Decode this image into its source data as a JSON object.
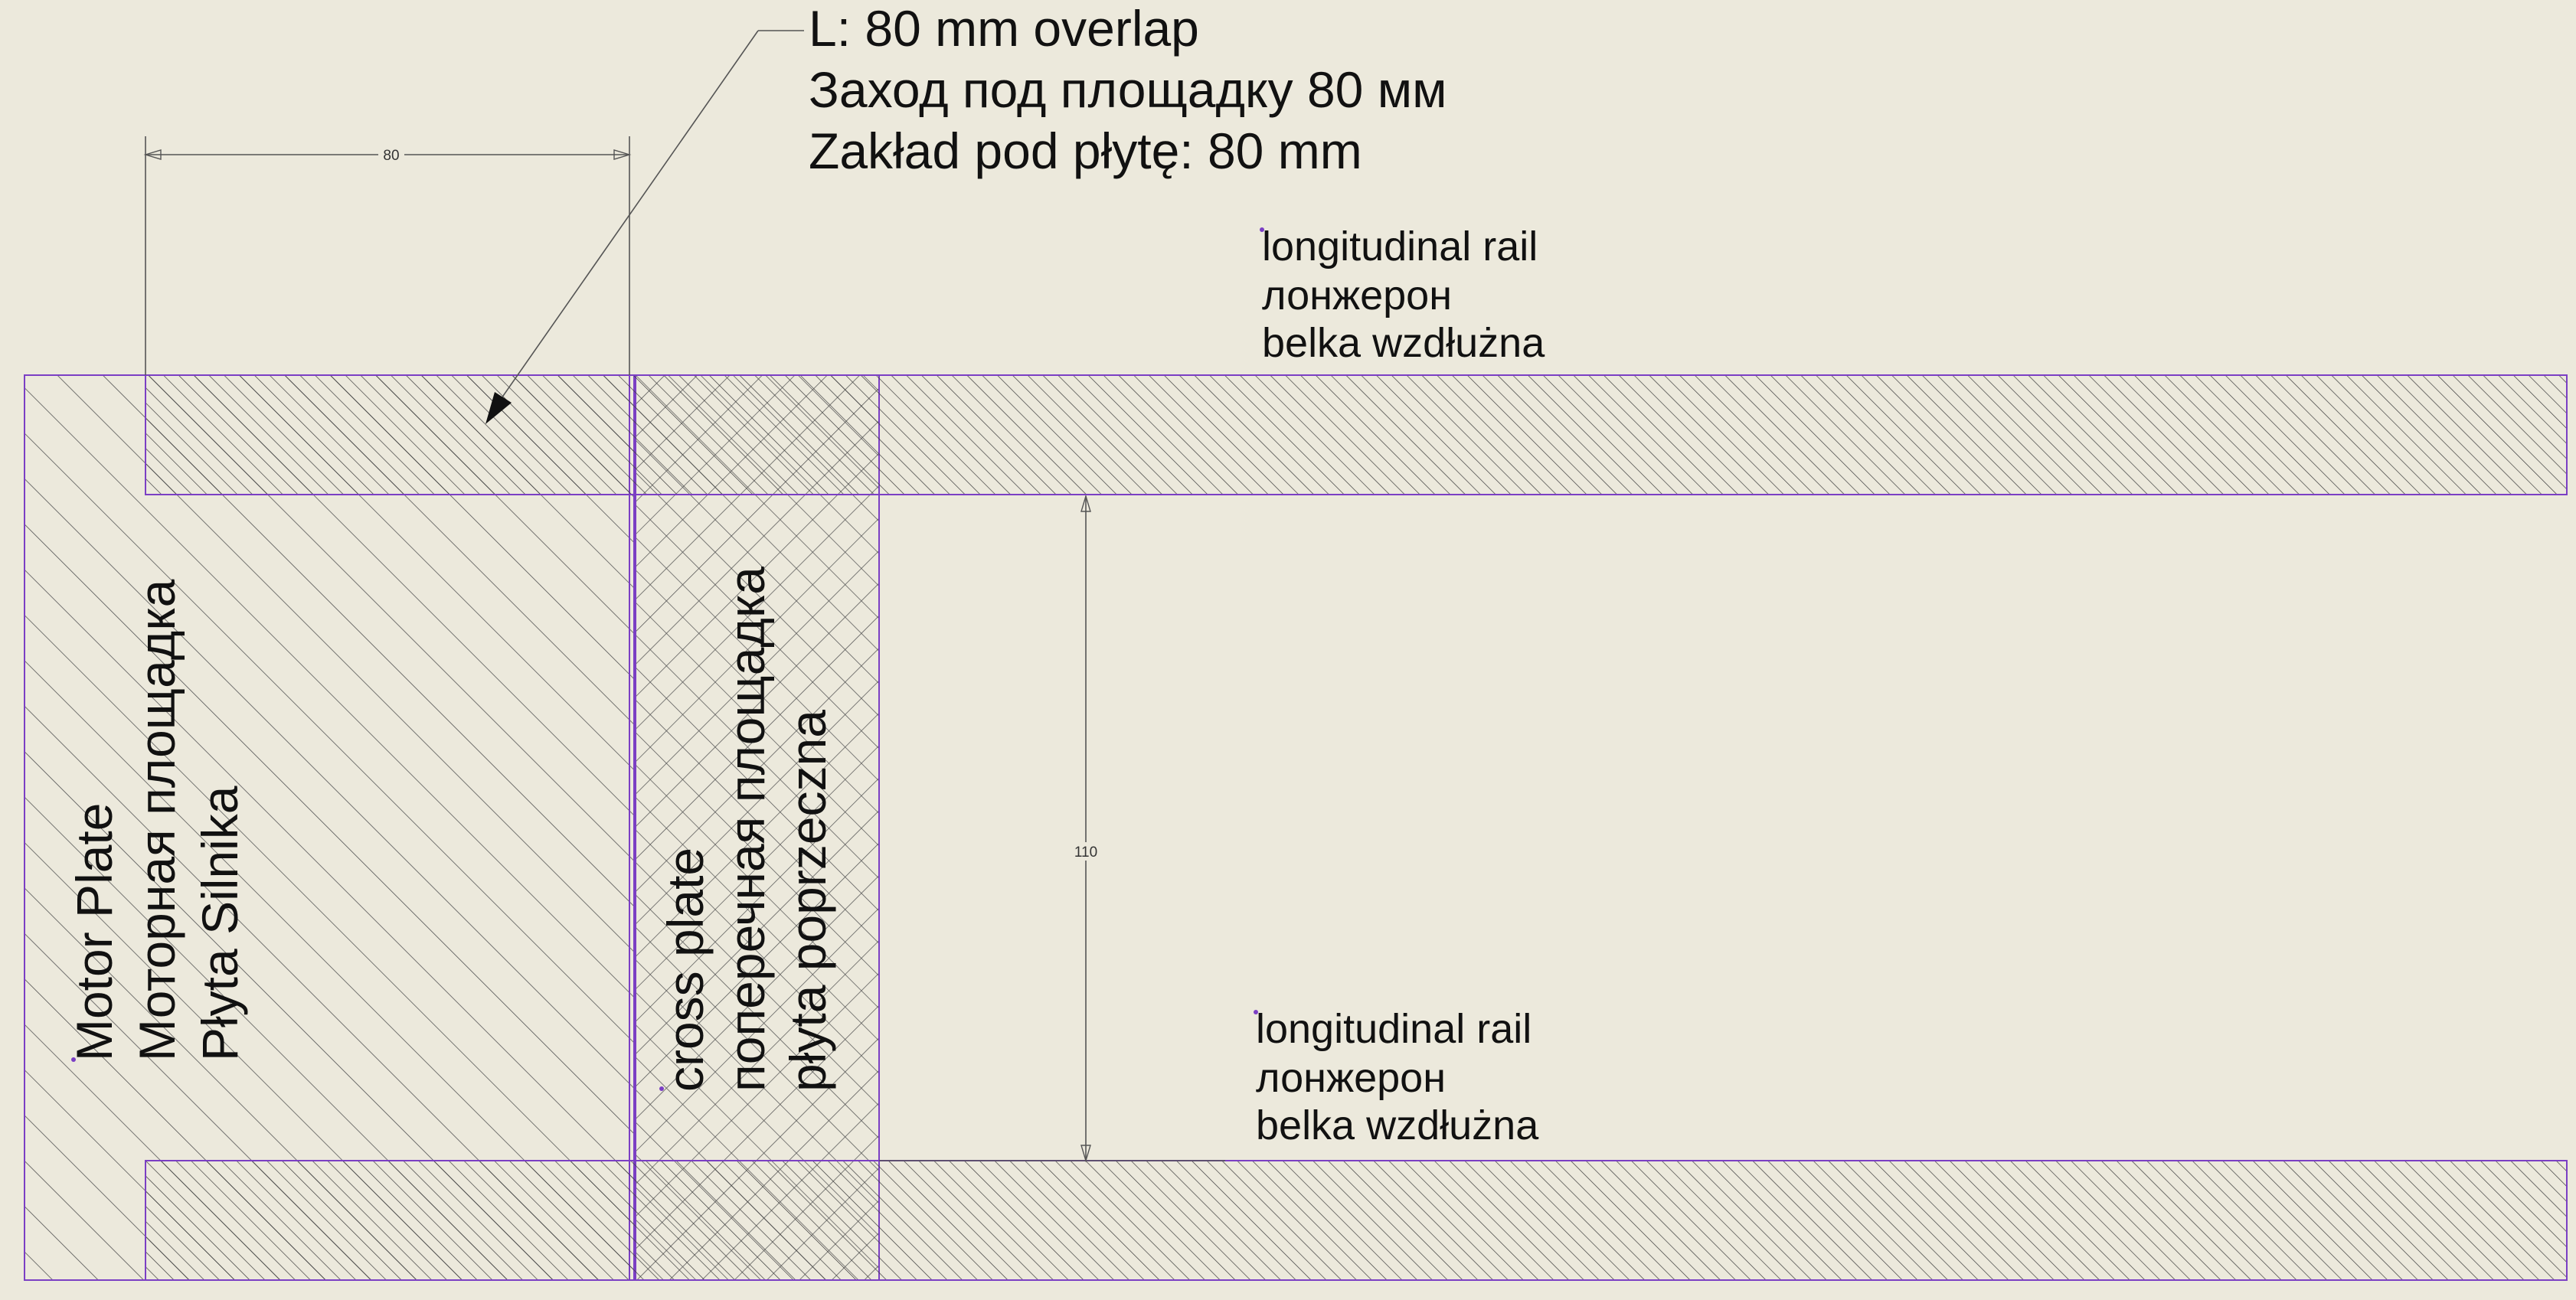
{
  "callout": {
    "line_en": "L: 80 mm overlap",
    "line_ru": "Заход под площадку 80 мм",
    "line_pl": "Zakład pod płytę: 80 mm"
  },
  "dimensions": {
    "overlap_value": "80",
    "gap_value": "110"
  },
  "rail_top": {
    "label_en": "longitudinal rail",
    "label_ru": "лонжерон",
    "label_pl": "belka wzdłużna"
  },
  "rail_bottom": {
    "label_en": "longitudinal rail",
    "label_ru": "лонжерон",
    "label_pl": "belka wzdłużna"
  },
  "motor_plate": {
    "label_en": "Motor Plate",
    "label_ru": "Моторная площадка",
    "label_pl": "Płyta Silnika"
  },
  "cross_plate": {
    "label_en": "cross plate",
    "label_ru": "поперечная площадка",
    "label_pl": "płyta poprzeczna"
  },
  "colors": {
    "background": "#ece9dc",
    "outline": "#7b3fc4",
    "hatch": "#444444"
  }
}
